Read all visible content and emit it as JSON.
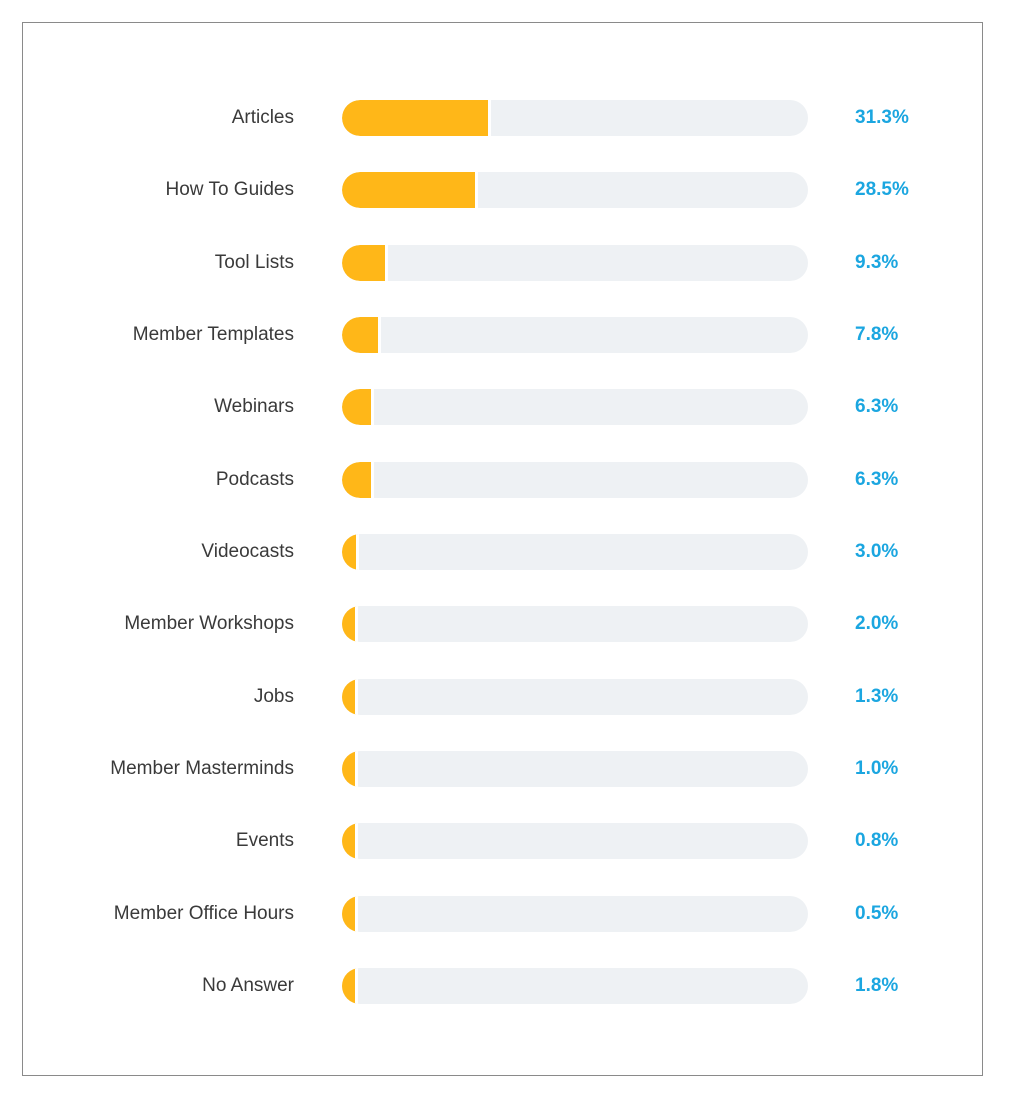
{
  "chart_data": {
    "type": "bar",
    "orientation": "horizontal",
    "title": "",
    "xlabel": "",
    "ylabel": "",
    "unit": "%",
    "xlim": [
      0,
      100
    ],
    "categories": [
      "Articles",
      "How To Guides",
      "Tool Lists",
      "Member Templates",
      "Webinars",
      "Podcasts",
      "Videocasts",
      "Member Workshops",
      "Jobs",
      "Member Masterminds",
      "Events",
      "Member Office Hours",
      "No Answer"
    ],
    "values": [
      31.3,
      28.5,
      9.3,
      7.8,
      6.3,
      6.3,
      3.0,
      2.0,
      1.3,
      1.0,
      0.8,
      0.5,
      1.8
    ],
    "value_labels": [
      "31.3%",
      "28.5%",
      "9.3%",
      "7.8%",
      "6.3%",
      "6.3%",
      "3.0%",
      "2.0%",
      "1.3%",
      "1.0%",
      "0.8%",
      "0.5%",
      "1.8%"
    ],
    "colors": {
      "bar": "#ffb718",
      "track": "#eef1f4",
      "value_label": "#1ba6e0",
      "category_label": "#3a3a3a"
    }
  }
}
